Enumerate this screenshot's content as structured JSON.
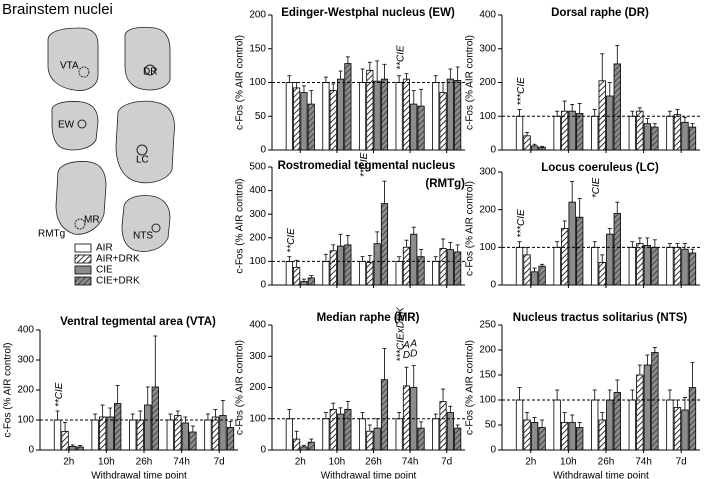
{
  "figure": {
    "title": "Brainstem nuclei",
    "regions": [
      "VTA",
      "DR",
      "EW",
      "LC",
      "MR",
      "RMTg",
      "NTS"
    ]
  },
  "chart_data": [
    {
      "type": "bar",
      "title": "Edinger-Westphal nucleus (EW)",
      "ylabel": "c-Fos (% AIR control)",
      "show_categories": false,
      "categories": [
        "2h",
        "10h",
        "26h",
        "74h",
        "7d"
      ],
      "ylim": [
        0,
        200
      ],
      "yticks": [
        0,
        50,
        100,
        150,
        200
      ],
      "reference_line": 100,
      "series": [
        {
          "name": "AIR",
          "color": "#ffffff",
          "pattern": "solid",
          "values": [
            100,
            100,
            100,
            100,
            100
          ],
          "errors": [
            10,
            8,
            20,
            10,
            10
          ]
        },
        {
          "name": "AIR+DRK",
          "color": "#ffffff",
          "pattern": "hatch",
          "values": [
            92,
            88,
            118,
            105,
            85
          ],
          "errors": [
            8,
            10,
            12,
            8,
            15
          ]
        },
        {
          "name": "CIE",
          "color": "#8c8c8c",
          "pattern": "solid",
          "values": [
            85,
            105,
            102,
            68,
            105
          ],
          "errors": [
            10,
            12,
            30,
            20,
            15
          ]
        },
        {
          "name": "CIE+DRK",
          "color": "#8c8c8c",
          "pattern": "hatch",
          "values": [
            68,
            128,
            105,
            65,
            103
          ],
          "errors": [
            20,
            10,
            22,
            25,
            20
          ]
        }
      ],
      "annotations": [
        {
          "text": "**CIE",
          "at": "74h"
        }
      ]
    },
    {
      "type": "bar",
      "title": "Dorsal raphe (DR)",
      "ylabel": "c-Fos (% AIR control)",
      "show_categories": false,
      "categories": [
        "2h",
        "10h",
        "26h",
        "74h",
        "7d"
      ],
      "ylim": [
        0,
        400
      ],
      "yticks": [
        0,
        100,
        200,
        300,
        400
      ],
      "reference_line": 100,
      "series": [
        {
          "name": "AIR",
          "color": "#ffffff",
          "pattern": "solid",
          "values": [
            100,
            100,
            100,
            100,
            100
          ],
          "errors": [
            20,
            15,
            20,
            15,
            15
          ]
        },
        {
          "name": "AIR+DRK",
          "color": "#ffffff",
          "pattern": "hatch",
          "values": [
            42,
            115,
            205,
            115,
            105
          ],
          "errors": [
            10,
            30,
            80,
            10,
            15
          ]
        },
        {
          "name": "CIE",
          "color": "#8c8c8c",
          "pattern": "solid",
          "values": [
            12,
            115,
            160,
            78,
            82
          ],
          "errors": [
            5,
            20,
            40,
            15,
            15
          ]
        },
        {
          "name": "CIE+DRK",
          "color": "#8c8c8c",
          "pattern": "hatch",
          "values": [
            8,
            108,
            255,
            68,
            68
          ],
          "errors": [
            3,
            30,
            55,
            10,
            10
          ]
        }
      ],
      "annotations": [
        {
          "text": "***CIE",
          "at": "2h"
        }
      ]
    },
    {
      "type": "bar",
      "title": "Rostromedial tegmental nucleus (RMTg)",
      "ylabel": "c-Fos (% AIR control)",
      "show_categories": false,
      "categories": [
        "2h",
        "10h",
        "26h",
        "74h",
        "7d"
      ],
      "ylim": [
        0,
        500
      ],
      "yticks": [
        0,
        100,
        200,
        300,
        400,
        500
      ],
      "reference_line": 100,
      "series": [
        {
          "name": "AIR",
          "color": "#ffffff",
          "pattern": "solid",
          "values": [
            100,
            100,
            100,
            100,
            100
          ],
          "errors": [
            20,
            30,
            20,
            20,
            20
          ]
        },
        {
          "name": "AIR+DRK",
          "color": "#ffffff",
          "pattern": "hatch",
          "values": [
            75,
            145,
            95,
            160,
            155
          ],
          "errors": [
            30,
            25,
            30,
            30,
            40
          ]
        },
        {
          "name": "CIE",
          "color": "#8c8c8c",
          "pattern": "solid",
          "values": [
            15,
            165,
            175,
            215,
            150
          ],
          "errors": [
            10,
            50,
            50,
            30,
            30
          ]
        },
        {
          "name": "CIE+DRK",
          "color": "#8c8c8c",
          "pattern": "hatch",
          "values": [
            30,
            170,
            345,
            120,
            140
          ],
          "errors": [
            10,
            40,
            95,
            30,
            30
          ]
        }
      ],
      "annotations": [
        {
          "text": "**CIE",
          "at": "2h"
        },
        {
          "text": "**CIE",
          "at": "26h"
        }
      ]
    },
    {
      "type": "bar",
      "title": "Locus coeruleus (LC)",
      "ylabel": "c-Fos (% AIR control)",
      "show_categories": false,
      "categories": [
        "2h",
        "10h",
        "26h",
        "74h",
        "7d"
      ],
      "ylim": [
        0,
        300
      ],
      "yticks": [
        0,
        100,
        200,
        300
      ],
      "reference_line": 100,
      "series": [
        {
          "name": "AIR",
          "color": "#ffffff",
          "pattern": "solid",
          "values": [
            100,
            100,
            100,
            100,
            100
          ],
          "errors": [
            15,
            15,
            15,
            15,
            10
          ]
        },
        {
          "name": "AIR+DRK",
          "color": "#ffffff",
          "pattern": "hatch",
          "values": [
            80,
            150,
            60,
            110,
            100
          ],
          "errors": [
            20,
            20,
            20,
            15,
            10
          ]
        },
        {
          "name": "CIE",
          "color": "#8c8c8c",
          "pattern": "solid",
          "values": [
            35,
            220,
            135,
            105,
            95
          ],
          "errors": [
            10,
            55,
            15,
            20,
            15
          ]
        },
        {
          "name": "CIE+DRK",
          "color": "#8c8c8c",
          "pattern": "hatch",
          "values": [
            50,
            180,
            190,
            100,
            85
          ],
          "errors": [
            5,
            50,
            30,
            20,
            10
          ]
        }
      ],
      "annotations": [
        {
          "text": "***CIE",
          "at": "2h"
        },
        {
          "text": "*CIE",
          "at": "26h"
        }
      ]
    },
    {
      "type": "bar",
      "title": "Ventral tegmental area (VTA)",
      "ylabel": "c-Fos (% AIR control)",
      "xlabel": "Withdrawal time point",
      "show_categories": true,
      "categories": [
        "2h",
        "10h",
        "26h",
        "74h",
        "7d"
      ],
      "ylim": [
        0,
        400
      ],
      "yticks": [
        0,
        100,
        200,
        300,
        400
      ],
      "reference_line": 100,
      "series": [
        {
          "name": "AIR",
          "color": "#ffffff",
          "pattern": "solid",
          "values": [
            100,
            100,
            100,
            100,
            100
          ],
          "errors": [
            30,
            20,
            20,
            20,
            20
          ]
        },
        {
          "name": "AIR+DRK",
          "color": "#ffffff",
          "pattern": "hatch",
          "values": [
            62,
            110,
            100,
            115,
            110
          ],
          "errors": [
            30,
            40,
            30,
            15,
            25
          ]
        },
        {
          "name": "CIE",
          "color": "#8c8c8c",
          "pattern": "solid",
          "values": [
            12,
            110,
            150,
            90,
            115
          ],
          "errors": [
            5,
            30,
            60,
            20,
            50
          ]
        },
        {
          "name": "CIE+DRK",
          "color": "#8c8c8c",
          "pattern": "hatch",
          "values": [
            10,
            155,
            210,
            60,
            75
          ],
          "errors": [
            5,
            60,
            170,
            20,
            20
          ]
        }
      ],
      "annotations": [
        {
          "text": "**CIE",
          "at": "2h"
        }
      ]
    },
    {
      "type": "bar",
      "title": "Median raphe (MR)",
      "ylabel": "c-Fos (% AIR control)",
      "xlabel": "Withdrawal time point",
      "show_categories": true,
      "categories": [
        "2h",
        "10h",
        "26h",
        "74h",
        "7d"
      ],
      "ylim": [
        0,
        400
      ],
      "yticks": [
        0,
        100,
        200,
        300,
        400
      ],
      "reference_line": 100,
      "series": [
        {
          "name": "AIR",
          "color": "#ffffff",
          "pattern": "solid",
          "values": [
            100,
            100,
            100,
            100,
            100
          ],
          "errors": [
            30,
            20,
            20,
            20,
            15
          ]
        },
        {
          "name": "AIR+DRK",
          "color": "#ffffff",
          "pattern": "hatch",
          "values": [
            35,
            130,
            60,
            205,
            155
          ],
          "errors": [
            25,
            20,
            20,
            60,
            40
          ]
        },
        {
          "name": "CIE",
          "color": "#8c8c8c",
          "pattern": "solid",
          "values": [
            10,
            115,
            70,
            200,
            120
          ],
          "errors": [
            5,
            20,
            30,
            70,
            20
          ]
        },
        {
          "name": "CIE+DRK",
          "color": "#8c8c8c",
          "pattern": "hatch",
          "values": [
            25,
            130,
            225,
            70,
            70
          ],
          "errors": [
            10,
            25,
            100,
            20,
            10
          ]
        }
      ],
      "annotations": [
        {
          "text": "***CIExDRK",
          "at": "74h"
        },
        {
          "text": "AD",
          "at": "74h",
          "series": "AIR+DRK"
        },
        {
          "text": "AD",
          "at": "74h",
          "series": "CIE"
        }
      ]
    },
    {
      "type": "bar",
      "title": "Nucleus tractus solitarius (NTS)",
      "ylabel": "c-Fos (% AIR control)",
      "xlabel": "Withdrawal time point",
      "show_categories": true,
      "categories": [
        "2h",
        "10h",
        "26h",
        "74h",
        "7d"
      ],
      "ylim": [
        0,
        250
      ],
      "yticks": [
        0,
        50,
        100,
        150,
        200,
        250
      ],
      "reference_line": 100,
      "series": [
        {
          "name": "AIR",
          "color": "#ffffff",
          "pattern": "solid",
          "values": [
            100,
            100,
            100,
            100,
            100
          ],
          "errors": [
            25,
            20,
            20,
            20,
            20
          ]
        },
        {
          "name": "AIR+DRK",
          "color": "#ffffff",
          "pattern": "hatch",
          "values": [
            60,
            55,
            60,
            150,
            85
          ],
          "errors": [
            15,
            20,
            15,
            20,
            15
          ]
        },
        {
          "name": "CIE",
          "color": "#8c8c8c",
          "pattern": "solid",
          "values": [
            55,
            55,
            100,
            170,
            80
          ],
          "errors": [
            10,
            15,
            20,
            20,
            25
          ]
        },
        {
          "name": "CIE+DRK",
          "color": "#8c8c8c",
          "pattern": "hatch",
          "values": [
            45,
            45,
            115,
            195,
            125
          ],
          "errors": [
            15,
            10,
            25,
            10,
            50
          ]
        }
      ],
      "annotations": []
    }
  ]
}
